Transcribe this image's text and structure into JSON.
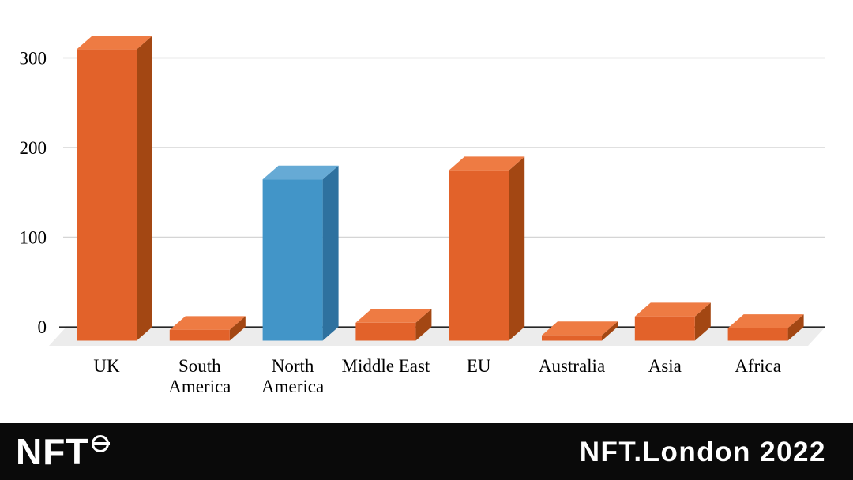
{
  "chart_data": {
    "type": "bar",
    "style": "3d-column",
    "title": "",
    "xlabel": "",
    "ylabel": "",
    "categories": [
      "UK",
      "South America",
      "North America",
      "Middle East",
      "EU",
      "Australia",
      "Asia",
      "Africa"
    ],
    "category_lines": [
      [
        "UK"
      ],
      [
        "South",
        "America"
      ],
      [
        "North",
        "America"
      ],
      [
        "Middle East"
      ],
      [
        "EU"
      ],
      [
        "Australia"
      ],
      [
        "Asia"
      ],
      [
        "Africa"
      ]
    ],
    "values": [
      325,
      12,
      180,
      20,
      190,
      6,
      27,
      14
    ],
    "bar_colors": [
      "orange",
      "orange",
      "blue",
      "orange",
      "orange",
      "orange",
      "orange",
      "orange"
    ],
    "yticks": [
      0,
      100,
      200,
      300
    ],
    "ylim": [
      0,
      340
    ],
    "grid": true,
    "legend": "none",
    "palette": {
      "orange": {
        "front": "#E2622A",
        "top": "#EE7B43",
        "side": "#A34713"
      },
      "blue": {
        "front": "#4295C8",
        "top": "#66AAD5",
        "side": "#2E719F"
      }
    },
    "colors": {
      "gridline": "#D5D5D5",
      "axis": "#262626",
      "floor": "#ECECEC",
      "text": "#000000",
      "background": "#FFFFFF"
    }
  },
  "footer": {
    "logo_text": "NFT",
    "logo_icon": "roundel-icon",
    "event_title": "NFT.London 2022",
    "colors": {
      "background": "#0A0A0A",
      "text": "#FFFFFF"
    }
  }
}
